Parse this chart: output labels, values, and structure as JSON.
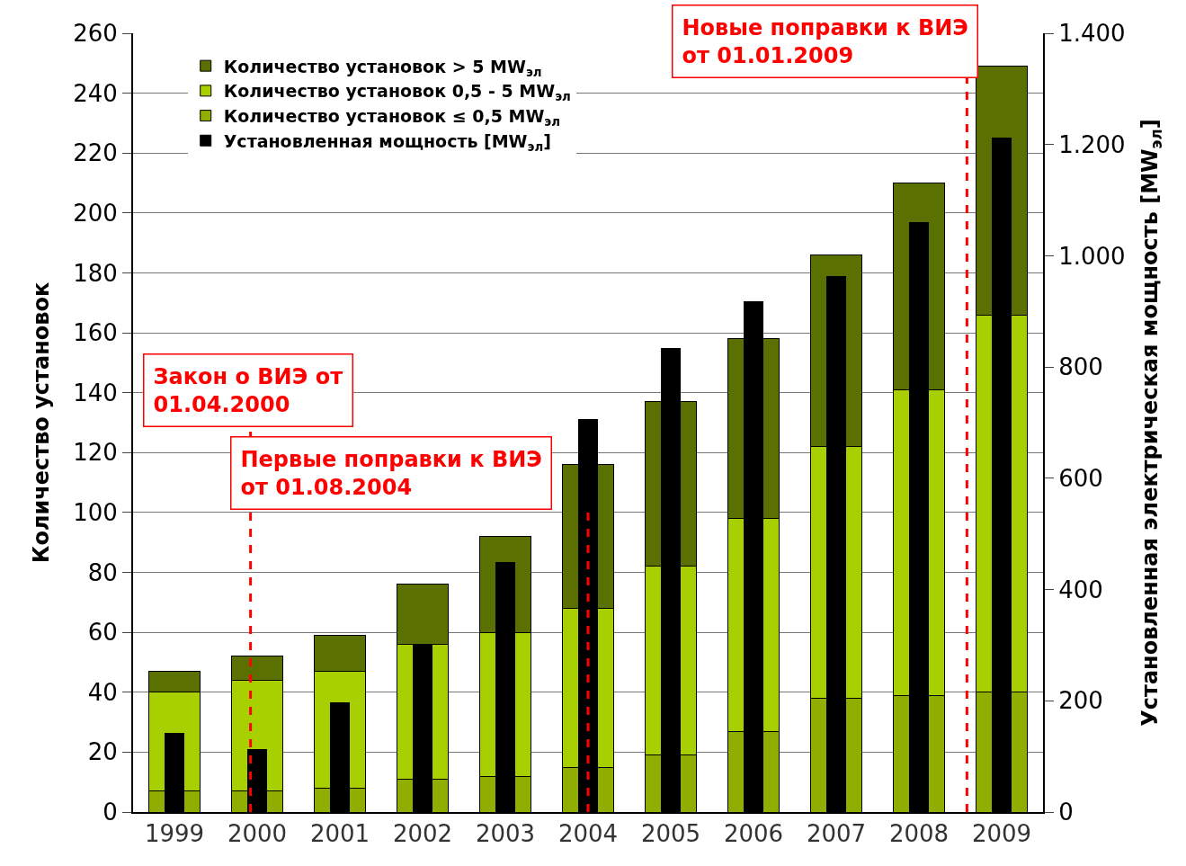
{
  "chart_data": {
    "type": "bar",
    "stacked": true,
    "x": [
      1999,
      2000,
      2001,
      2002,
      2003,
      2004,
      2005,
      2006,
      2007,
      2008,
      2009
    ],
    "xlim": [
      1998.5,
      2009.5
    ],
    "xticks": [
      1999,
      2000,
      2001,
      2002,
      2003,
      2004,
      2005,
      2006,
      2007,
      2008,
      2009
    ],
    "ylabel": "Количество установок",
    "y2label": "Установленная электрическая мощность [MW$_{эл}$]",
    "ylim": [
      0,
      260
    ],
    "yticks": [
      0,
      20,
      40,
      60,
      80,
      100,
      120,
      140,
      160,
      180,
      200,
      220,
      240,
      260
    ],
    "y2lim": [
      0,
      1400
    ],
    "y2ticks": [
      0,
      200,
      400,
      600,
      800,
      {
        "value": 1000,
        "label": "1.000"
      },
      {
        "value": 1200,
        "label": "1.200"
      },
      {
        "value": 1400,
        "label": "1.400"
      }
    ],
    "grid": "y",
    "legend": "top left",
    "series": [
      {
        "name": "Количество установок ≤ 0,5 MW$_{эл}$",
        "color": "#8fae00",
        "values": [
          7,
          7,
          8,
          11,
          12,
          15,
          19,
          27,
          38,
          39,
          40
        ]
      },
      {
        "name": "Количество установок 0,5 - 5 MW$_{эл}$",
        "color": "#a8d000",
        "values": [
          33,
          37,
          39,
          45,
          48,
          53,
          63,
          71,
          84,
          102,
          126
        ]
      },
      {
        "name": "Количество установок > 5 MW$_{эл}$",
        "color": "#5a7000",
        "values": [
          7,
          8,
          12,
          20,
          32,
          48,
          55,
          60,
          64,
          69,
          83
        ]
      },
      {
        "name": "Установленная мощность [MW$_{эл}$]",
        "color": "#000000",
        "axis": "y2",
        "values": [
          141,
          112,
          196,
          302,
          448,
          706,
          834,
          917,
          963,
          1060,
          1212
        ]
      }
    ],
    "ref_lines": [
      {
        "axis": "x",
        "value": 1999.92,
        "label": "Закон о ВИЭ от\n01.04.2000",
        "color": "#ff0000",
        "line_style": "dashed"
      },
      {
        "axis": "x",
        "value": 2004.0,
        "label": "Первые поправки к ВИЭ\nот 01.08.2004",
        "color": "#ff0000",
        "line_style": "dashed"
      },
      {
        "axis": "x",
        "value": 2008.58,
        "label": "Новые поправки к ВИЭ\nот 01.01.2009",
        "color": "#ff0000",
        "line_style": "dashed"
      }
    ]
  }
}
